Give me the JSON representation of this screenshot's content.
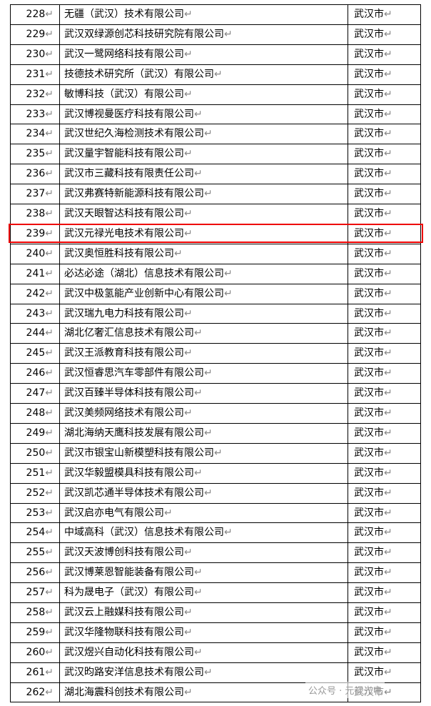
{
  "table": {
    "rows": [
      [
        "228↵",
        "无疆（武汉）技术有限公司↵",
        "武汉市↵"
      ],
      [
        "229↵",
        "武汉双绿源创芯科技研究院有限公司↵",
        "武汉市↵"
      ],
      [
        "230↵",
        "武汉一鹭网络科技有限公司↵",
        "武汉市↵"
      ],
      [
        "231↵",
        "技德技术研究所（武汉）有限公司↵",
        "武汉市↵"
      ],
      [
        "232↵",
        "敏博科技（武汉）有限公司↵",
        "武汉市↵"
      ],
      [
        "233↵",
        "武汉博视曼医疗科技有限公司↵",
        "武汉市↵"
      ],
      [
        "234↵",
        "武汉世纪久海检测技术有限公司↵",
        "武汉市↵"
      ],
      [
        "235↵",
        "武汉量宇智能科技有限公司↵",
        "武汉市↵"
      ],
      [
        "236↵",
        "武汉市三藏科技有限责任公司↵",
        "武汉市↵"
      ],
      [
        "237↵",
        "武汉弗赛特新能源科技有限公司↵",
        "武汉市↵"
      ],
      [
        "238↵",
        "武汉天眼智达科技有限公司↵",
        "武汉市↵"
      ],
      [
        "239↵",
        "武汉元禄光电技术有限公司↵",
        "武汉市↵"
      ],
      [
        "240↵",
        "武汉奥恒胜科技有限公司↵",
        "武汉市↵"
      ],
      [
        "241↵",
        "必达必途（湖北）信息技术有限公司↵",
        "武汉市↵"
      ],
      [
        "242↵",
        "武汉中极氢能产业创新中心有限公司↵",
        "武汉市↵"
      ],
      [
        "243↵",
        "武汉瑞九电力科技有限公司↵",
        "武汉市↵"
      ],
      [
        "244↵",
        "湖北亿奢汇信息技术有限公司↵",
        "武汉市↵"
      ],
      [
        "245↵",
        "武汉王派教育科技有限公司↵",
        "武汉市↵"
      ],
      [
        "246↵",
        "武汉恒睿思汽车零部件有限公司↵",
        "武汉市↵"
      ],
      [
        "247↵",
        "武汉百臻半导体科技有限公司↵",
        "武汉市↵"
      ],
      [
        "248↵",
        "武汉美频网络技术有限公司↵",
        "武汉市↵"
      ],
      [
        "249↵",
        "湖北海纳天鹰科技发展有限公司↵",
        "武汉市↵"
      ],
      [
        "250↵",
        "武汉市银宝山新模塑科技有限公司↵",
        "武汉市↵"
      ],
      [
        "251↵",
        "武汉华毅盟模具科技有限公司↵",
        "武汉市↵"
      ],
      [
        "252↵",
        "武汉凯芯通半导体技术有限公司↵",
        "武汉市↵"
      ],
      [
        "253↵",
        "武汉启亦电气有限公司↵",
        "武汉市↵"
      ],
      [
        "254↵",
        "中域高科（武汉）信息技术有限公司↵",
        "武汉市↵"
      ],
      [
        "255↵",
        "武汉天波博创科技有限公司↵",
        "武汉市↵"
      ],
      [
        "256↵",
        "武汉博莱恩智能装备有限公司↵",
        "武汉市↵"
      ],
      [
        "257↵",
        "科为晟电子（武汉）有限公司↵",
        "武汉市↵"
      ],
      [
        "258↵",
        "武汉云上融媒科技有限公司↵",
        "武汉市↵"
      ],
      [
        "259↵",
        "武汉华隆物联科技有限公司↵",
        "武汉市↵"
      ],
      [
        "260↵",
        "武汉煜兴自动化科技有限公司↵",
        "武汉市↵"
      ],
      [
        "261↵",
        "武汉昀路安洋信息技术有限公司↵",
        "武汉市↵"
      ],
      [
        "262↵",
        "湖北海震科创技术有限公司↵",
        "武汉市↵"
      ]
    ]
  },
  "highlight_row": 11,
  "watermark": "公众号 · 元禄光电"
}
